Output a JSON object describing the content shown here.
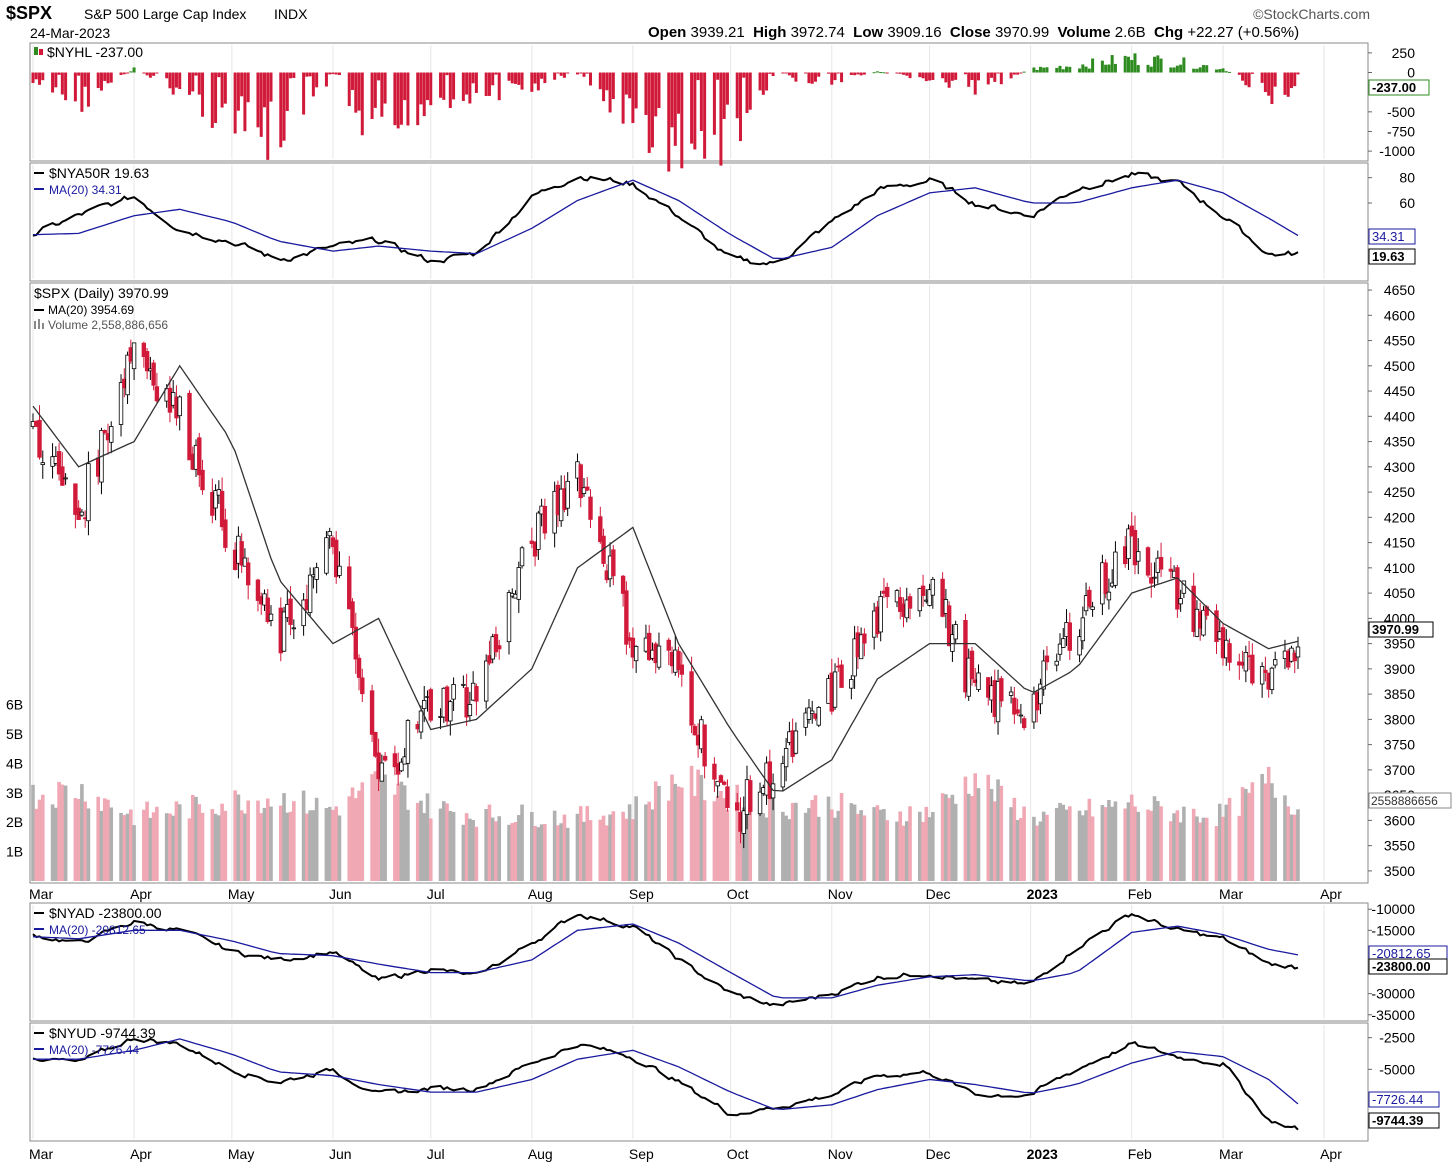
{
  "header": {
    "symbol": "$SPX",
    "name": "S&P 500 Large Cap Index",
    "exchange": "INDX",
    "date": "24-Mar-2023",
    "brand": "©StockCharts.com",
    "open_label": "Open",
    "open": "3939.21",
    "high_label": "High",
    "high": "3972.74",
    "low_label": "Low",
    "low": "3909.16",
    "close_label": "Close",
    "close": "3970.99",
    "volume_label": "Volume",
    "volume": "2.6B",
    "chg_label": "Chg",
    "chg": "+22.27 (+0.56%)"
  },
  "colors": {
    "up": "#2e8b1f",
    "down": "#d11a3a",
    "ma": "#1a1a9e",
    "line": "#000000",
    "volume_up": "#b0b0b0",
    "volume_down": "#f0a8b4",
    "grid": "#e6e6e6"
  },
  "x_axis": {
    "months": [
      "Mar",
      "Apr",
      "May",
      "Jun",
      "Jul",
      "Aug",
      "Sep",
      "Oct",
      "Nov",
      "Dec",
      "2023",
      "Feb",
      "Mar",
      "Apr"
    ]
  },
  "panels": {
    "nyhl": {
      "legend": "$NYHL -237.00",
      "ticks": [
        "250",
        "0",
        "-500",
        "-750",
        "-1000"
      ],
      "badge": "-237.00"
    },
    "nya50r": {
      "legend": "$NYA50R 19.63",
      "ma_legend": "MA(20) 34.31",
      "ticks": [
        "80",
        "60"
      ],
      "badge_ma": "34.31",
      "badge_value": "19.63"
    },
    "spx": {
      "legend": "$SPX (Daily) 3970.99",
      "ma_legend": "MA(20) 3954.69",
      "vol_legend": "Volume 2,558,886,656",
      "price_ticks": [
        "4650",
        "4600",
        "4550",
        "4500",
        "4450",
        "4400",
        "4350",
        "4300",
        "4250",
        "4200",
        "4150",
        "4100",
        "4050",
        "4000",
        "3950",
        "3900",
        "3850",
        "3800",
        "3750",
        "3700",
        "3650",
        "3600",
        "3550",
        "3500"
      ],
      "volume_ticks": [
        "6B",
        "5B",
        "4B",
        "3B",
        "2B",
        "1B"
      ],
      "badge_close": "3970.99",
      "badge_volume": "2558886656"
    },
    "nyad": {
      "legend": "$NYAD -23800.00",
      "ma_legend": "MA(20) -20812.65",
      "ticks": [
        "-10000",
        "-15000",
        "-30000",
        "-35000"
      ],
      "badge_ma": "-20812.65",
      "badge_value": "-23800.00"
    },
    "nyud": {
      "legend": "$NYUD -9744.39",
      "ma_legend": "MA(20) -7726.44",
      "ticks": [
        "-2500",
        "-5000"
      ],
      "badge_ma": "-7726.44",
      "badge_value": "-9744.39"
    }
  },
  "chart_data": [
    {
      "type": "bar",
      "title": "$NYHL -237.00",
      "ylim": [
        -1100,
        350
      ],
      "x": [
        "2022-03-01",
        "2022-03-15",
        "2022-04-01",
        "2022-04-15",
        "2022-05-01",
        "2022-05-15",
        "2022-06-01",
        "2022-06-15",
        "2022-07-01",
        "2022-07-15",
        "2022-08-01",
        "2022-08-15",
        "2022-09-01",
        "2022-09-15",
        "2022-10-01",
        "2022-10-15",
        "2022-11-01",
        "2022-11-15",
        "2022-12-01",
        "2022-12-15",
        "2023-01-01",
        "2023-01-15",
        "2023-02-01",
        "2023-02-15",
        "2023-03-01",
        "2023-03-15",
        "2023-03-24"
      ],
      "values": [
        -150,
        -400,
        50,
        -250,
        -700,
        -900,
        -200,
        -1000,
        -350,
        -300,
        -200,
        -30,
        -650,
        -1000,
        -900,
        -50,
        -150,
        20,
        -100,
        -250,
        50,
        100,
        200,
        150,
        60,
        -300,
        -237
      ]
    },
    {
      "type": "line",
      "title": "$NYA50R 19.63",
      "ylim": [
        0,
        90
      ],
      "x": [
        "2022-03-01",
        "2022-03-15",
        "2022-04-01",
        "2022-04-15",
        "2022-05-01",
        "2022-05-15",
        "2022-06-01",
        "2022-06-15",
        "2022-07-01",
        "2022-07-15",
        "2022-08-01",
        "2022-08-15",
        "2022-09-01",
        "2022-09-15",
        "2022-10-01",
        "2022-10-15",
        "2022-11-01",
        "2022-11-15",
        "2022-12-01",
        "2022-12-15",
        "2023-01-01",
        "2023-01-15",
        "2023-02-01",
        "2023-02-15",
        "2023-03-01",
        "2023-03-15",
        "2023-03-24"
      ],
      "series": [
        {
          "name": "$NYA50R",
          "values": [
            35,
            50,
            65,
            40,
            30,
            15,
            25,
            30,
            14,
            20,
            65,
            82,
            75,
            50,
            15,
            12,
            45,
            70,
            78,
            60,
            50,
            72,
            82,
            76,
            50,
            20,
            19.63
          ]
        },
        {
          "name": "MA(20)",
          "values": [
            35,
            36,
            50,
            55,
            45,
            30,
            22,
            26,
            22,
            20,
            40,
            62,
            78,
            62,
            35,
            15,
            25,
            50,
            68,
            72,
            60,
            60,
            72,
            78,
            68,
            48,
            34.31
          ]
        }
      ]
    },
    {
      "type": "line",
      "title": "$SPX (Daily) 3970.99",
      "ylim": [
        3480,
        4660
      ],
      "x": [
        "2022-03-01",
        "2022-03-15",
        "2022-04-01",
        "2022-04-15",
        "2022-05-01",
        "2022-05-15",
        "2022-06-01",
        "2022-06-15",
        "2022-07-01",
        "2022-07-15",
        "2022-08-01",
        "2022-08-15",
        "2022-09-01",
        "2022-09-15",
        "2022-10-01",
        "2022-10-15",
        "2022-11-01",
        "2022-11-15",
        "2022-12-01",
        "2022-12-15",
        "2023-01-01",
        "2023-01-15",
        "2023-02-01",
        "2023-02-15",
        "2023-03-01",
        "2023-03-15",
        "2023-03-24"
      ],
      "series": [
        {
          "name": "$SPX",
          "values": [
            4380,
            4200,
            4550,
            4400,
            4150,
            3950,
            4150,
            3680,
            3830,
            3850,
            4150,
            4300,
            3950,
            3900,
            3600,
            3700,
            3850,
            4000,
            4080,
            3850,
            3820,
            4000,
            4150,
            4050,
            3950,
            3850,
            3970.99
          ]
        },
        {
          "name": "MA(20)",
          "values": [
            4420,
            4300,
            4350,
            4500,
            4350,
            4080,
            3950,
            4000,
            3780,
            3800,
            3900,
            4100,
            4180,
            3950,
            3780,
            3650,
            3720,
            3880,
            3950,
            3950,
            3850,
            3900,
            4050,
            4080,
            3990,
            3940,
            3954.69
          ]
        }
      ]
    },
    {
      "type": "bar",
      "title": "Volume 2,558,886,656",
      "ylim": [
        0,
        6500000000
      ],
      "x": [
        "2022-03-01",
        "2022-03-15",
        "2022-04-01",
        "2022-04-15",
        "2022-05-01",
        "2022-05-15",
        "2022-06-01",
        "2022-06-15",
        "2022-07-01",
        "2022-07-15",
        "2022-08-01",
        "2022-08-15",
        "2022-09-01",
        "2022-09-15",
        "2022-10-01",
        "2022-10-15",
        "2022-11-01",
        "2022-11-15",
        "2022-12-01",
        "2022-12-15",
        "2023-01-01",
        "2023-01-15",
        "2023-02-01",
        "2023-02-15",
        "2023-03-01",
        "2023-03-15",
        "2023-03-24"
      ],
      "values": [
        3000000000,
        3200000000,
        2300000000,
        2500000000,
        2800000000,
        2900000000,
        2500000000,
        3500000000,
        2600000000,
        2300000000,
        2300000000,
        2200000000,
        2500000000,
        3600000000,
        2900000000,
        2600000000,
        2700000000,
        2300000000,
        2400000000,
        3600000000,
        2200000000,
        2400000000,
        2700000000,
        2400000000,
        2300000000,
        3500000000,
        2558886656
      ]
    },
    {
      "type": "line",
      "title": "$NYAD -23800.00",
      "ylim": [
        -36000,
        -9000
      ],
      "x": [
        "2022-03-01",
        "2022-03-15",
        "2022-04-01",
        "2022-04-15",
        "2022-05-01",
        "2022-05-15",
        "2022-06-01",
        "2022-06-15",
        "2022-07-01",
        "2022-07-15",
        "2022-08-01",
        "2022-08-15",
        "2022-09-01",
        "2022-09-15",
        "2022-10-01",
        "2022-10-15",
        "2022-11-01",
        "2022-11-15",
        "2022-12-01",
        "2022-12-15",
        "2023-01-01",
        "2023-01-15",
        "2023-02-01",
        "2023-02-15",
        "2023-03-01",
        "2023-03-15",
        "2023-03-24"
      ],
      "series": [
        {
          "name": "$NYAD",
          "values": [
            -16000,
            -18000,
            -13000,
            -15000,
            -20000,
            -22000,
            -20000,
            -27000,
            -24000,
            -26000,
            -18000,
            -11000,
            -14000,
            -22000,
            -30000,
            -33000,
            -30000,
            -26000,
            -25000,
            -27000,
            -28000,
            -19000,
            -11000,
            -15000,
            -17000,
            -23000,
            -23800
          ]
        },
        {
          "name": "MA(20)",
          "values": [
            -16500,
            -17000,
            -15000,
            -15000,
            -17500,
            -20500,
            -21000,
            -23000,
            -25000,
            -25000,
            -22000,
            -15000,
            -13500,
            -18000,
            -25000,
            -31000,
            -31000,
            -28000,
            -26000,
            -25500,
            -27000,
            -25000,
            -15500,
            -14000,
            -16000,
            -19500,
            -20812.65
          ]
        }
      ]
    },
    {
      "type": "line",
      "title": "$NYUD -9744.39",
      "ylim": [
        -10500,
        -1500
      ],
      "x": [
        "2022-03-01",
        "2022-03-15",
        "2022-04-01",
        "2022-04-15",
        "2022-05-01",
        "2022-05-15",
        "2022-06-01",
        "2022-06-15",
        "2022-07-01",
        "2022-07-15",
        "2022-08-01",
        "2022-08-15",
        "2022-09-01",
        "2022-09-15",
        "2022-10-01",
        "2022-10-15",
        "2022-11-01",
        "2022-11-15",
        "2022-12-01",
        "2022-12-15",
        "2023-01-01",
        "2023-01-15",
        "2023-02-01",
        "2023-02-15",
        "2023-03-01",
        "2023-03-15",
        "2023-03-24"
      ],
      "series": [
        {
          "name": "$NYUD",
          "values": [
            -4000,
            -4500,
            -2500,
            -3000,
            -5000,
            -6000,
            -5000,
            -7000,
            -6500,
            -6500,
            -4500,
            -3000,
            -4000,
            -6000,
            -8500,
            -8000,
            -7000,
            -5500,
            -5200,
            -7000,
            -7000,
            -5000,
            -3000,
            -4000,
            -4500,
            -9000,
            -9744.39
          ]
        },
        {
          "name": "MA(20)",
          "values": [
            -4200,
            -4200,
            -3500,
            -2600,
            -3800,
            -5200,
            -5500,
            -6200,
            -6800,
            -6800,
            -5800,
            -4200,
            -3500,
            -4800,
            -6800,
            -8200,
            -7800,
            -6600,
            -5800,
            -6200,
            -6900,
            -6200,
            -4500,
            -3600,
            -4000,
            -5800,
            -7726.44
          ]
        }
      ]
    }
  ]
}
